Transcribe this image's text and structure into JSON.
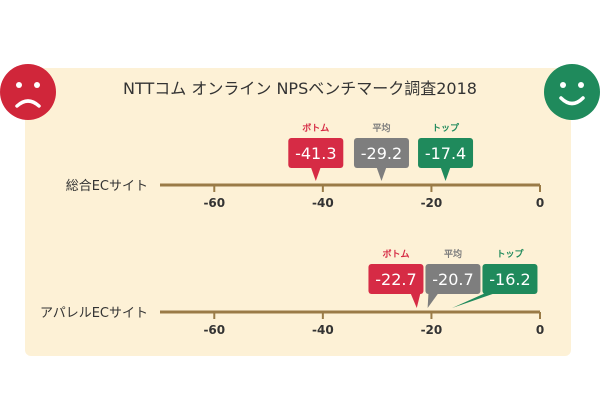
{
  "title": "NTTコム オンライン NPSベンチマーク調査2018",
  "faces": {
    "negative": {
      "icon": "sad-face-icon",
      "color": "#d0263a"
    },
    "positive": {
      "icon": "happy-face-icon",
      "color": "#1f8a5c"
    }
  },
  "colors": {
    "panel": "#fdf1d6",
    "axis": "#9a7b47",
    "axis_text": "#333333",
    "bottom": "#d62b45",
    "average": "#7e7e7e",
    "top": "#1f8a5c"
  },
  "chart_data": [
    {
      "type": "bar",
      "category": "総合ECサイト",
      "xlim": [
        -70,
        0
      ],
      "ticks": [
        "-60",
        "-40",
        "-20",
        "0"
      ],
      "tick_values": [
        -60,
        -40,
        -20,
        0
      ],
      "markers": [
        {
          "label": "ボトム",
          "value": -41.3,
          "display": "-41.3",
          "kind": "bottom"
        },
        {
          "label": "平均",
          "value": -29.2,
          "display": "-29.2",
          "kind": "average"
        },
        {
          "label": "トップ",
          "value": -17.4,
          "display": "-17.4",
          "kind": "top"
        }
      ]
    },
    {
      "type": "bar",
      "category": "アパレルECサイト",
      "xlim": [
        -70,
        0
      ],
      "ticks": [
        "-60",
        "-40",
        "-20",
        "0"
      ],
      "tick_values": [
        -60,
        -40,
        -20,
        0
      ],
      "markers": [
        {
          "label": "ボトム",
          "value": -22.7,
          "display": "-22.7",
          "kind": "bottom"
        },
        {
          "label": "平均",
          "value": -20.7,
          "display": "-20.7",
          "kind": "average"
        },
        {
          "label": "トップ",
          "value": -16.2,
          "display": "-16.2",
          "kind": "top"
        }
      ]
    }
  ]
}
